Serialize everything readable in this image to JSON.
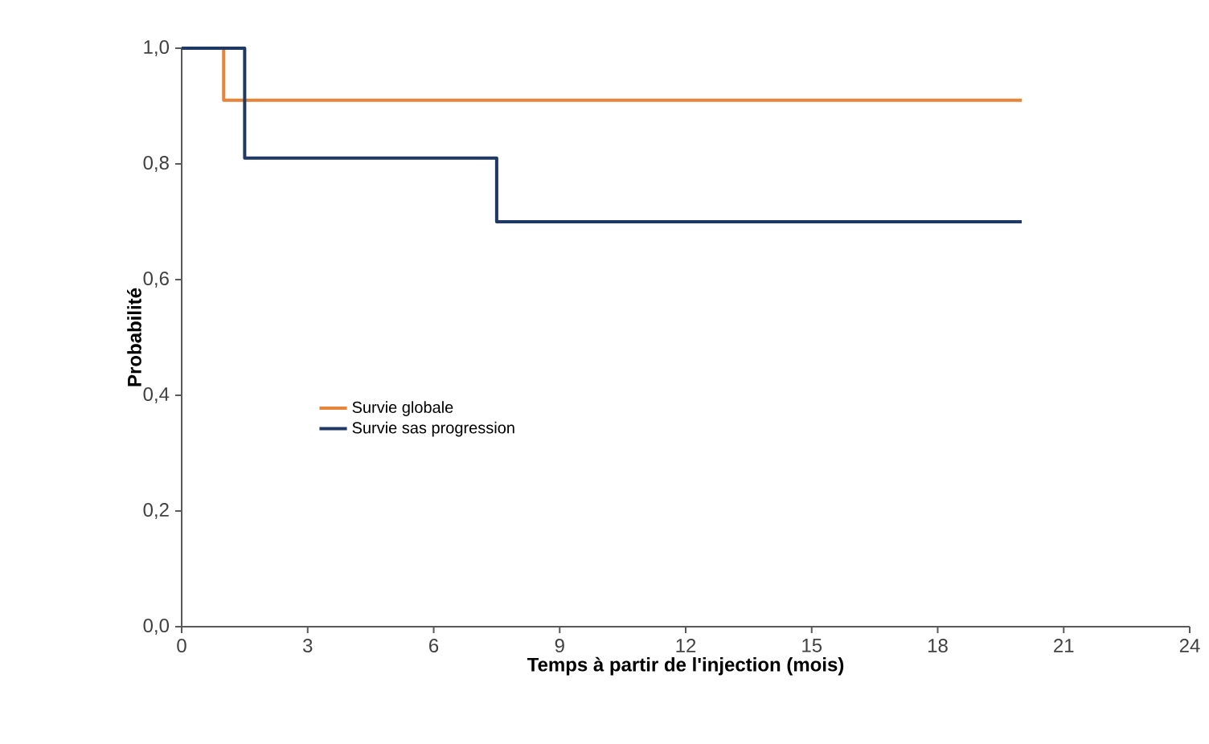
{
  "chart_data": {
    "type": "step",
    "xlabel": "Temps à partir de l'injection (mois)",
    "ylabel": "Probabilité",
    "series": [
      {
        "name": "Survie globale",
        "color": "#e8833a",
        "x": [
          0,
          1,
          20
        ],
        "values": [
          1.0,
          0.91,
          0.91
        ]
      },
      {
        "name": "Survie sas progression",
        "color": "#1f3864",
        "x": [
          0,
          1.5,
          7.5,
          20
        ],
        "values": [
          1.0,
          0.81,
          0.7,
          0.7
        ]
      }
    ],
    "xlim": [
      0,
      24
    ],
    "xticks": [
      0,
      3,
      6,
      9,
      12,
      15,
      18,
      21,
      24
    ],
    "ylim": [
      0,
      1
    ],
    "yticks": [
      {
        "value": 0,
        "label": "0,0"
      },
      {
        "value": 0.2,
        "label": "0,2"
      },
      {
        "value": 0.4,
        "label": "0,4"
      },
      {
        "value": 0.6,
        "label": "0,6"
      },
      {
        "value": 0.8,
        "label": "0,8"
      },
      {
        "value": 1,
        "label": "1,0"
      }
    ],
    "legend": "left",
    "grid": false,
    "marker": "none",
    "line_style": "solid"
  }
}
